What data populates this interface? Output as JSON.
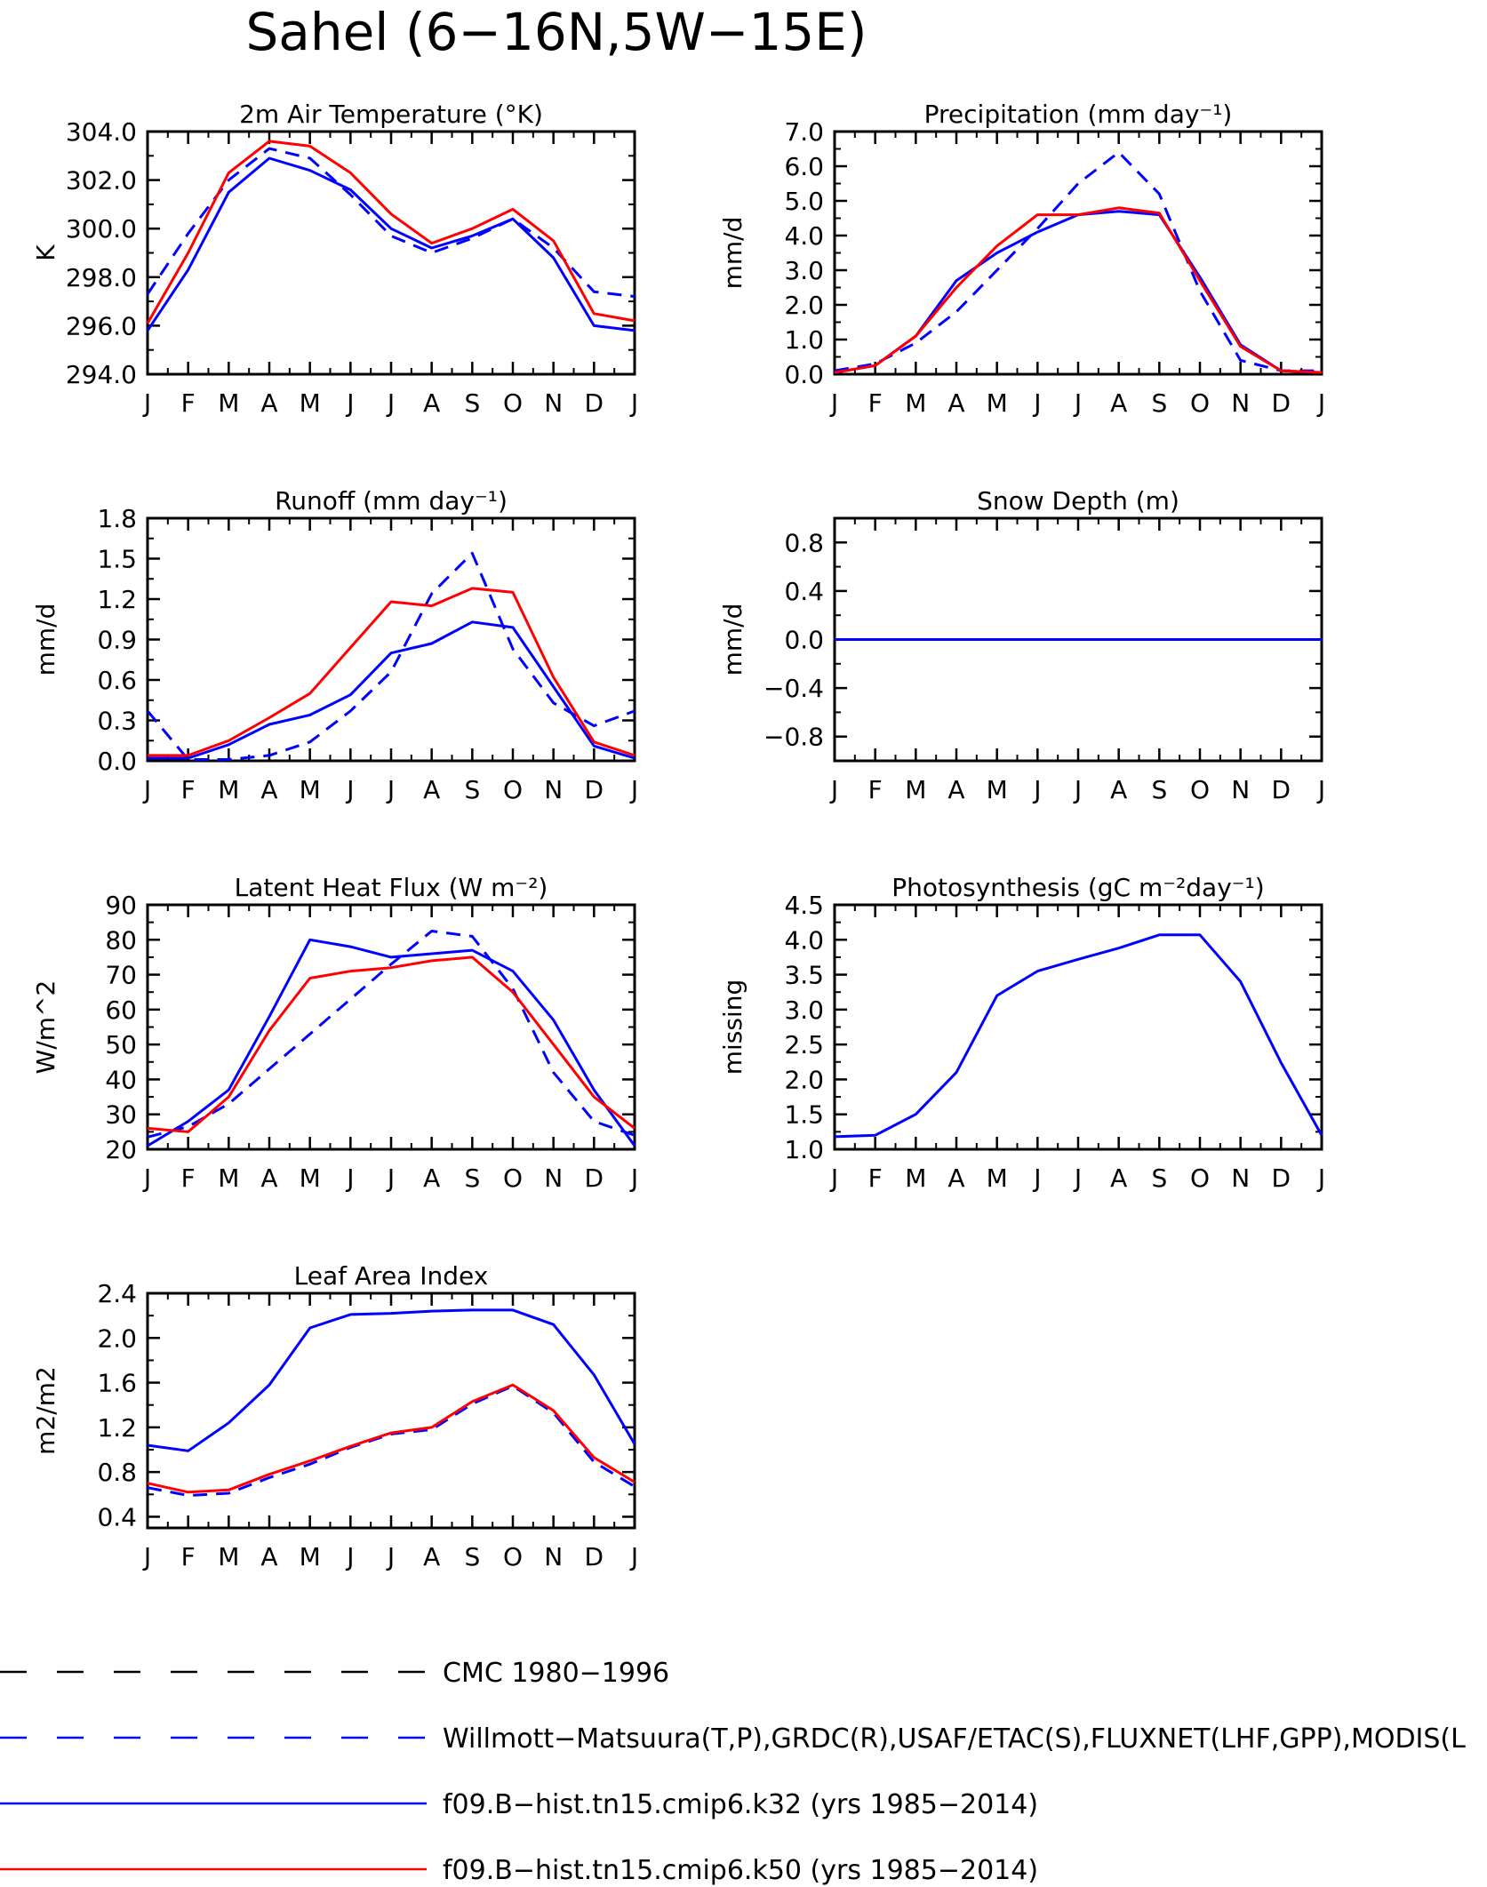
{
  "title": "Sahel (6−16N,5W−15E)",
  "colors": {
    "blue": "#0000ff",
    "red": "#ff0000",
    "black": "#000000"
  },
  "legend": [
    {
      "label": "CMC 1980−1996",
      "color": "#000000",
      "dash": true
    },
    {
      "label": "Willmott−Matsuura(T,P),GRDC(R),USAF/ETAC(S),FLUXNET(LHF,GPP),MODIS(L",
      "color": "#0000ff",
      "dash": true
    },
    {
      "label": "f09.B−hist.tn15.cmip6.k32 (yrs 1985−2014)",
      "color": "#0000ff",
      "dash": false
    },
    {
      "label": "f09.B−hist.tn15.cmip6.k50 (yrs 1985−2014)",
      "color": "#ff0000",
      "dash": false
    }
  ],
  "chart_data": [
    {
      "id": "air-temperature",
      "type": "line",
      "title": "2m Air Temperature (°K)",
      "ylabel": "K",
      "categories": [
        "J",
        "F",
        "M",
        "A",
        "M",
        "J",
        "J",
        "A",
        "S",
        "O",
        "N",
        "D",
        "J"
      ],
      "ylim": [
        294,
        304
      ],
      "yticks": [
        294,
        296,
        298,
        300,
        302,
        304
      ],
      "ytick_labels": [
        "294.0",
        "296.0",
        "298.0",
        "300.0",
        "302.0",
        "304.0"
      ],
      "series": [
        {
          "style": "obs",
          "color": "#0000ff",
          "dash": true,
          "values": [
            297.3,
            299.8,
            302.0,
            303.3,
            302.9,
            301.4,
            299.7,
            299.0,
            299.6,
            300.4,
            299.2,
            297.4,
            297.2
          ]
        },
        {
          "style": "k32",
          "color": "#0000ff",
          "dash": false,
          "values": [
            295.8,
            298.3,
            301.5,
            302.9,
            302.4,
            301.6,
            300.0,
            299.2,
            299.7,
            300.4,
            298.8,
            296.0,
            295.8
          ]
        },
        {
          "style": "k50",
          "color": "#ff0000",
          "dash": false,
          "values": [
            296.1,
            299.0,
            302.3,
            303.6,
            303.4,
            302.3,
            300.6,
            299.4,
            300.0,
            300.8,
            299.5,
            296.5,
            296.2
          ]
        }
      ]
    },
    {
      "id": "precipitation",
      "type": "line",
      "title": "Precipitation (mm day⁻¹)",
      "ylabel": "mm/d",
      "categories": [
        "J",
        "F",
        "M",
        "A",
        "M",
        "J",
        "J",
        "A",
        "S",
        "O",
        "N",
        "D",
        "J"
      ],
      "ylim": [
        0,
        7
      ],
      "yticks": [
        0,
        1,
        2,
        3,
        4,
        5,
        6,
        7
      ],
      "ytick_labels": [
        "0.0",
        "1.0",
        "2.0",
        "3.0",
        "4.0",
        "5.0",
        "6.0",
        "7.0"
      ],
      "series": [
        {
          "style": "obs",
          "color": "#0000ff",
          "dash": true,
          "values": [
            0.1,
            0.3,
            0.9,
            1.8,
            3.0,
            4.2,
            5.5,
            6.4,
            5.2,
            2.4,
            0.4,
            0.1,
            0.1
          ]
        },
        {
          "style": "k32",
          "color": "#0000ff",
          "dash": false,
          "values": [
            0.05,
            0.25,
            1.1,
            2.7,
            3.5,
            4.1,
            4.6,
            4.7,
            4.6,
            2.8,
            0.85,
            0.1,
            0.05
          ]
        },
        {
          "style": "k50",
          "color": "#ff0000",
          "dash": false,
          "values": [
            0.05,
            0.25,
            1.1,
            2.5,
            3.7,
            4.6,
            4.6,
            4.8,
            4.65,
            2.7,
            0.8,
            0.1,
            0.05
          ]
        }
      ]
    },
    {
      "id": "runoff",
      "type": "line",
      "title": "Runoff (mm day⁻¹)",
      "ylabel": "mm/d",
      "categories": [
        "J",
        "F",
        "M",
        "A",
        "M",
        "J",
        "J",
        "A",
        "S",
        "O",
        "N",
        "D",
        "J"
      ],
      "ylim": [
        0,
        1.8
      ],
      "yticks": [
        0,
        0.3,
        0.6,
        0.9,
        1.2,
        1.5,
        1.8
      ],
      "ytick_labels": [
        "0.0",
        "0.3",
        "0.6",
        "0.9",
        "1.2",
        "1.5",
        "1.8"
      ],
      "series": [
        {
          "style": "obs",
          "color": "#0000ff",
          "dash": true,
          "values": [
            0.37,
            0.01,
            0.01,
            0.04,
            0.14,
            0.37,
            0.66,
            1.24,
            1.54,
            0.83,
            0.43,
            0.26,
            0.37
          ]
        },
        {
          "style": "k32",
          "color": "#0000ff",
          "dash": false,
          "values": [
            0.02,
            0.02,
            0.12,
            0.27,
            0.34,
            0.49,
            0.8,
            0.87,
            1.03,
            0.99,
            0.55,
            0.11,
            0.02
          ]
        },
        {
          "style": "k50",
          "color": "#ff0000",
          "dash": false,
          "values": [
            0.04,
            0.04,
            0.15,
            0.32,
            0.5,
            0.84,
            1.18,
            1.15,
            1.28,
            1.25,
            0.62,
            0.14,
            0.04
          ]
        }
      ]
    },
    {
      "id": "snow-depth",
      "type": "line",
      "title": "Snow Depth (m)",
      "ylabel": "mm/d",
      "categories": [
        "J",
        "F",
        "M",
        "A",
        "M",
        "J",
        "J",
        "A",
        "S",
        "O",
        "N",
        "D",
        "J"
      ],
      "ylim": [
        -1.0,
        1.0
      ],
      "yticks": [
        -0.8,
        -0.4,
        0.0,
        0.4,
        0.8
      ],
      "ytick_labels": [
        "−0.8",
        "−0.4",
        "0.0",
        "0.4",
        "0.8"
      ],
      "series": [
        {
          "style": "k32",
          "color": "#0000ff",
          "dash": false,
          "values": [
            0,
            0,
            0,
            0,
            0,
            0,
            0,
            0,
            0,
            0,
            0,
            0,
            0
          ]
        },
        {
          "style": "obs",
          "color": "#0000ff",
          "dash": true,
          "values": [
            0,
            0,
            0,
            0,
            0,
            0,
            0,
            0,
            0,
            0,
            0,
            0,
            0
          ]
        }
      ]
    },
    {
      "id": "latent-heat-flux",
      "type": "line",
      "title": "Latent Heat Flux (W m⁻²)",
      "ylabel": "W/m^2",
      "categories": [
        "J",
        "F",
        "M",
        "A",
        "M",
        "J",
        "J",
        "A",
        "S",
        "O",
        "N",
        "D",
        "J"
      ],
      "ylim": [
        20,
        90
      ],
      "yticks": [
        20,
        30,
        40,
        50,
        60,
        70,
        80,
        90
      ],
      "ytick_labels": [
        "20",
        "30",
        "40",
        "50",
        "60",
        "70",
        "80",
        "90"
      ],
      "series": [
        {
          "style": "obs",
          "color": "#0000ff",
          "dash": true,
          "values": [
            23.5,
            26.5,
            33.0,
            43.0,
            53.0,
            63.0,
            73.0,
            82.5,
            81.0,
            66.0,
            42.0,
            28.0,
            24.0
          ]
        },
        {
          "style": "k32",
          "color": "#0000ff",
          "dash": false,
          "values": [
            21.0,
            28.0,
            37.0,
            58.0,
            80.0,
            78.0,
            75.0,
            76.0,
            77.0,
            71.0,
            57.0,
            37.0,
            21.0
          ]
        },
        {
          "style": "k50",
          "color": "#ff0000",
          "dash": false,
          "values": [
            26.0,
            25.0,
            35.0,
            54.0,
            69.0,
            71.0,
            72.0,
            74.0,
            75.0,
            65.0,
            50.0,
            35.0,
            26.0
          ]
        }
      ]
    },
    {
      "id": "photosynthesis",
      "type": "line",
      "title": "Photosynthesis (gC m⁻²day⁻¹)",
      "ylabel": "missing",
      "categories": [
        "J",
        "F",
        "M",
        "A",
        "M",
        "J",
        "J",
        "A",
        "S",
        "O",
        "N",
        "D",
        "J"
      ],
      "ylim": [
        1.0,
        4.5
      ],
      "yticks": [
        1.0,
        1.5,
        2.0,
        2.5,
        3.0,
        3.5,
        4.0,
        4.5
      ],
      "ytick_labels": [
        "1.0",
        "1.5",
        "2.0",
        "2.5",
        "3.0",
        "3.5",
        "4.0",
        "4.5"
      ],
      "series": [
        {
          "style": "obs",
          "color": "#0000ff",
          "dash": false,
          "values": [
            1.18,
            1.2,
            1.5,
            2.1,
            3.2,
            3.55,
            3.72,
            3.88,
            4.07,
            4.07,
            3.4,
            2.24,
            1.2
          ]
        }
      ]
    },
    {
      "id": "leaf-area-index",
      "type": "line",
      "title": "Leaf Area Index",
      "ylabel": "m2/m2",
      "categories": [
        "J",
        "F",
        "M",
        "A",
        "M",
        "J",
        "J",
        "A",
        "S",
        "O",
        "N",
        "D",
        "J"
      ],
      "ylim": [
        0.3,
        2.4
      ],
      "yticks": [
        0.4,
        0.8,
        1.2,
        1.6,
        2.0,
        2.4
      ],
      "ytick_labels": [
        "0.4",
        "0.8",
        "1.2",
        "1.6",
        "2.0",
        "2.4"
      ],
      "series": [
        {
          "style": "obs",
          "color": "#0000ff",
          "dash": true,
          "values": [
            0.66,
            0.59,
            0.61,
            0.75,
            0.87,
            1.02,
            1.14,
            1.18,
            1.41,
            1.57,
            1.33,
            0.89,
            0.67
          ]
        },
        {
          "style": "k32",
          "color": "#0000ff",
          "dash": false,
          "values": [
            1.04,
            0.99,
            1.24,
            1.58,
            2.09,
            2.21,
            2.22,
            2.24,
            2.25,
            2.25,
            2.12,
            1.67,
            1.05
          ]
        },
        {
          "style": "k50",
          "color": "#ff0000",
          "dash": false,
          "values": [
            0.7,
            0.62,
            0.64,
            0.78,
            0.9,
            1.03,
            1.15,
            1.2,
            1.43,
            1.58,
            1.35,
            0.93,
            0.71
          ]
        }
      ]
    }
  ]
}
